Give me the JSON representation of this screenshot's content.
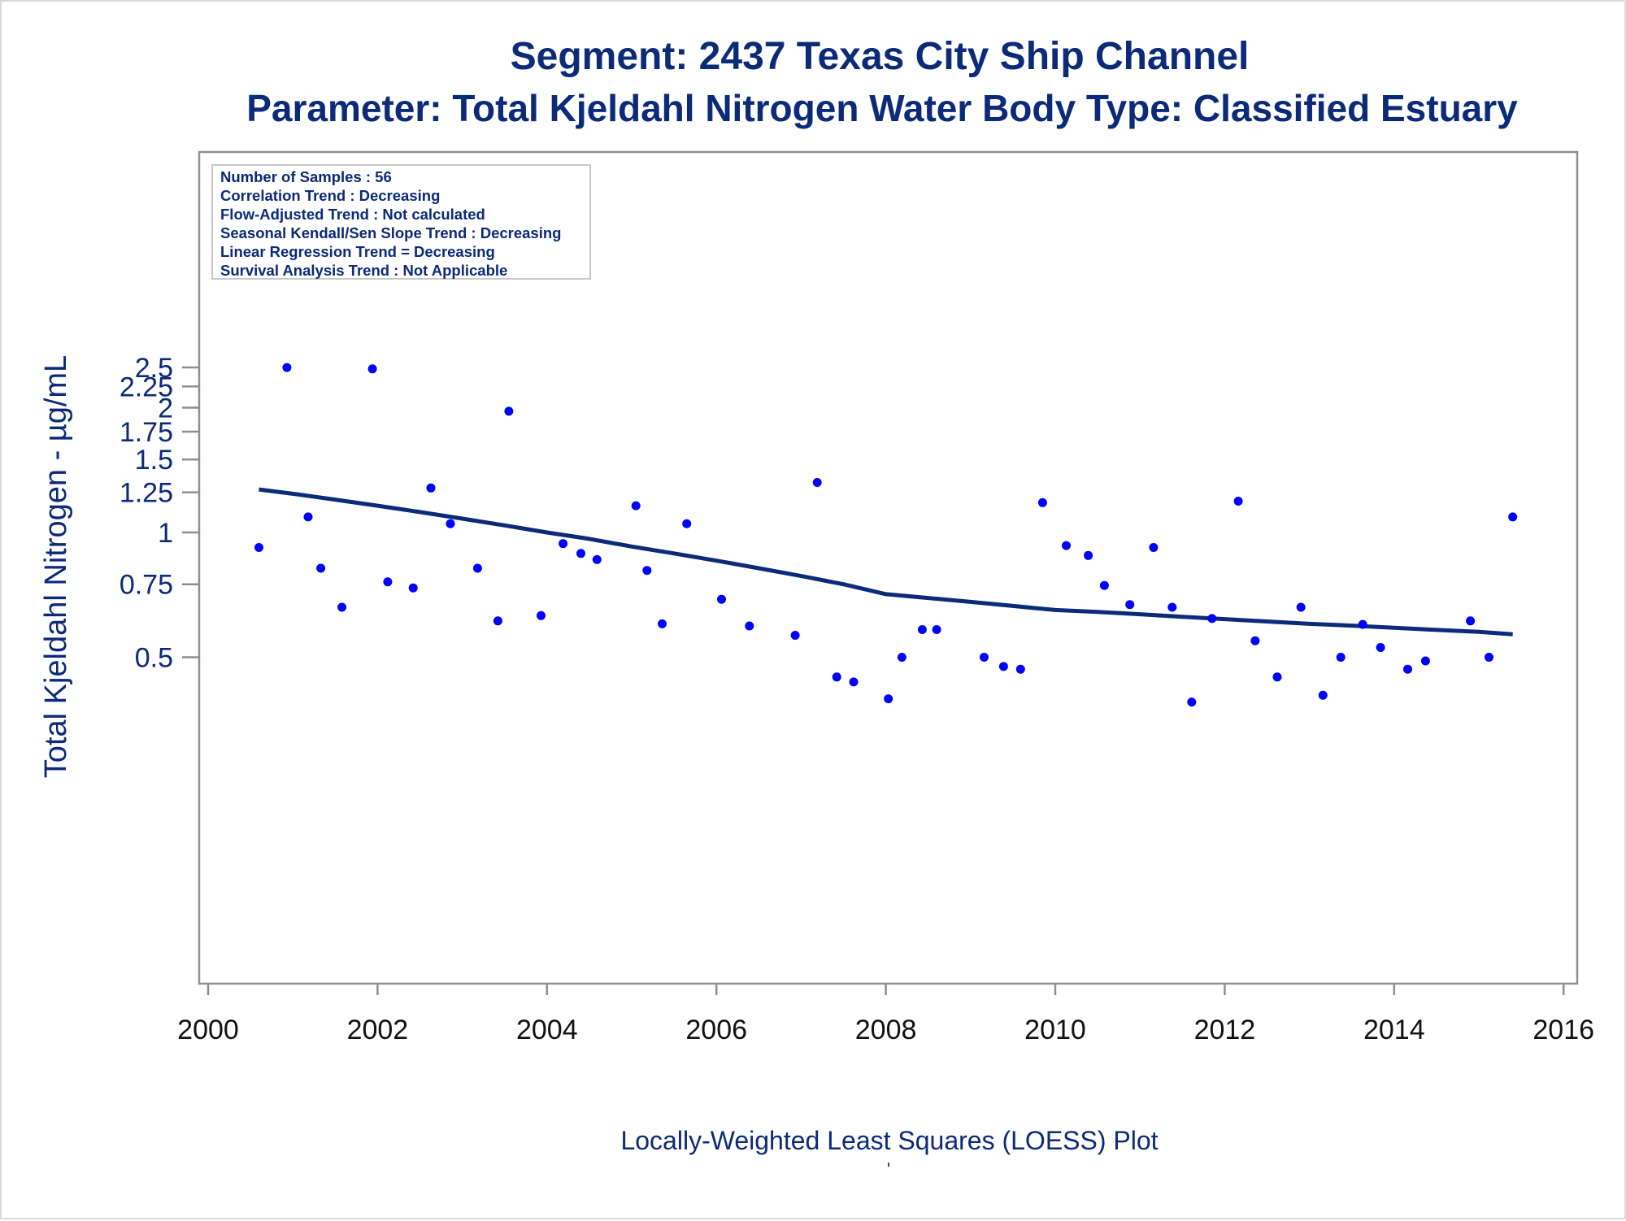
{
  "chart_data": {
    "type": "scatter",
    "title": "Segment: 2437  Texas City Ship Channel",
    "subtitle": "Parameter: Total Kjeldahl Nitrogen   Water Body Type: Classified Estuary",
    "ylabel": "Total Kjeldahl Nitrogen -  µg/mL",
    "footnote": "Locally-Weighted Least Squares (LOESS) Plot",
    "footnote_mark": "'",
    "y_scale": "log",
    "xlim": [
      2000,
      2016
    ],
    "ylim": [
      0.4,
      2.55
    ],
    "x_ticks": [
      "2000",
      "2002",
      "2004",
      "2006",
      "2008",
      "2010",
      "2012",
      "2014",
      "2016"
    ],
    "y_ticks": [
      "0.5",
      "0.75",
      "1",
      "1.25",
      "1.5",
      "1.75",
      "2",
      "2.25",
      "2.5"
    ],
    "grid": false,
    "stats_box": {
      "placement": "top-left",
      "lines": [
        "Number of Samples : 56",
        "Correlation Trend : Decreasing",
        "Flow-Adjusted Trend : Not calculated",
        "Seasonal Kendall/Sen Slope Trend : Decreasing",
        "Linear Regression Trend = Decreasing",
        "Survival Analysis Trend : Not Applicable"
      ]
    },
    "series": [
      {
        "kind": "points",
        "color": "#0000ff",
        "points": [
          [
            2000.6,
            0.92
          ],
          [
            2000.93,
            2.5
          ],
          [
            2001.18,
            1.09
          ],
          [
            2001.33,
            0.82
          ],
          [
            2001.58,
            0.66
          ],
          [
            2002.12,
            0.76
          ],
          [
            2002.42,
            0.735
          ],
          [
            2002.63,
            1.28
          ],
          [
            2002.86,
            1.05
          ],
          [
            2003.18,
            0.82
          ],
          [
            2003.42,
            0.612
          ],
          [
            2003.55,
            1.96
          ],
          [
            2003.93,
            0.63
          ],
          [
            2004.19,
            0.94
          ],
          [
            2004.4,
            0.89
          ],
          [
            2004.59,
            0.86
          ],
          [
            2005.05,
            1.16
          ],
          [
            2005.18,
            0.81
          ],
          [
            2005.36,
            0.602
          ],
          [
            2005.65,
            1.05
          ],
          [
            2006.06,
            0.69
          ],
          [
            2006.39,
            0.595
          ],
          [
            2006.93,
            0.565
          ],
          [
            2007.19,
            1.32
          ],
          [
            2007.42,
            0.448
          ],
          [
            2007.62,
            0.436
          ],
          [
            2008.03,
            0.397
          ],
          [
            2008.19,
            0.5
          ],
          [
            2008.43,
            0.583
          ],
          [
            2008.6,
            0.583
          ],
          [
            2009.16,
            0.5
          ],
          [
            2009.39,
            0.475
          ],
          [
            2009.59,
            0.468
          ],
          [
            2009.85,
            1.18
          ],
          [
            2010.13,
            0.93
          ],
          [
            2010.39,
            0.88
          ],
          [
            2010.58,
            0.745
          ],
          [
            2010.88,
            0.67
          ],
          [
            2011.16,
            0.92
          ],
          [
            2011.38,
            0.66
          ],
          [
            2011.61,
            0.39
          ],
          [
            2011.85,
            0.62
          ],
          [
            2012.16,
            1.19
          ],
          [
            2012.36,
            0.548
          ],
          [
            2012.62,
            0.448
          ],
          [
            2012.9,
            0.66
          ],
          [
            2013.16,
            0.405
          ],
          [
            2013.37,
            0.5
          ],
          [
            2013.63,
            0.6
          ],
          [
            2013.84,
            0.528
          ],
          [
            2014.16,
            0.468
          ],
          [
            2014.37,
            0.49
          ],
          [
            2014.9,
            0.612
          ],
          [
            2015.12,
            0.5
          ],
          [
            2015.4,
            1.09
          ],
          [
            2001.94,
            2.48
          ]
        ]
      },
      {
        "kind": "loess-line",
        "color": "#0b2a78",
        "points": [
          [
            2000.6,
            1.27
          ],
          [
            2001.0,
            1.24
          ],
          [
            2001.5,
            1.2
          ],
          [
            2002.0,
            1.16
          ],
          [
            2002.5,
            1.12
          ],
          [
            2003.0,
            1.08
          ],
          [
            2003.5,
            1.04
          ],
          [
            2004.0,
            1.0
          ],
          [
            2004.5,
            0.965
          ],
          [
            2005.0,
            0.925
          ],
          [
            2005.5,
            0.89
          ],
          [
            2006.0,
            0.855
          ],
          [
            2006.5,
            0.82
          ],
          [
            2007.0,
            0.785
          ],
          [
            2007.5,
            0.75
          ],
          [
            2008.0,
            0.71
          ],
          [
            2008.5,
            0.695
          ],
          [
            2009.0,
            0.68
          ],
          [
            2009.5,
            0.665
          ],
          [
            2010.0,
            0.65
          ],
          [
            2010.5,
            0.643
          ],
          [
            2011.0,
            0.635
          ],
          [
            2011.5,
            0.626
          ],
          [
            2012.0,
            0.618
          ],
          [
            2012.5,
            0.61
          ],
          [
            2013.0,
            0.602
          ],
          [
            2013.5,
            0.596
          ],
          [
            2014.0,
            0.589
          ],
          [
            2014.5,
            0.582
          ],
          [
            2015.0,
            0.576
          ],
          [
            2015.4,
            0.568
          ]
        ]
      }
    ]
  }
}
